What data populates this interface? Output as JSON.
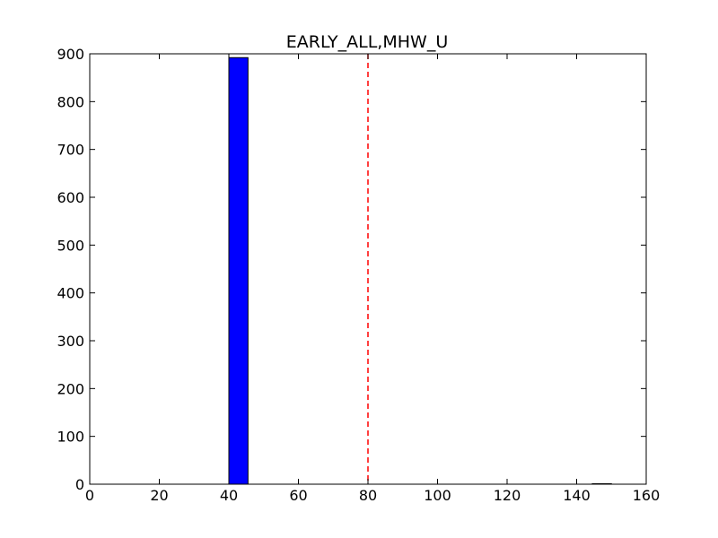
{
  "chart_data": {
    "type": "bar",
    "title": "EARLY_ALL,MHW_U",
    "xlabel": "",
    "ylabel": "",
    "xlim": [
      0,
      160
    ],
    "ylim": [
      0,
      900
    ],
    "xticks": [
      0,
      20,
      40,
      60,
      80,
      100,
      120,
      140,
      160
    ],
    "yticks": [
      0,
      100,
      200,
      300,
      400,
      500,
      600,
      700,
      800,
      900
    ],
    "grid": false,
    "bins": [
      {
        "x0": 40.0,
        "x1": 45.5,
        "count": 892
      },
      {
        "x0": 45.5,
        "x1": 51.0,
        "count": 0
      },
      {
        "x0": 51.0,
        "x1": 56.5,
        "count": 0
      },
      {
        "x0": 56.5,
        "x1": 62.0,
        "count": 0
      },
      {
        "x0": 62.0,
        "x1": 67.5,
        "count": 0
      },
      {
        "x0": 67.5,
        "x1": 73.0,
        "count": 0
      },
      {
        "x0": 73.0,
        "x1": 78.5,
        "count": 0
      },
      {
        "x0": 78.5,
        "x1": 84.0,
        "count": 0
      },
      {
        "x0": 84.0,
        "x1": 89.5,
        "count": 0
      },
      {
        "x0": 89.5,
        "x1": 95.0,
        "count": 0
      },
      {
        "x0": 95.0,
        "x1": 100.5,
        "count": 0
      },
      {
        "x0": 100.5,
        "x1": 106.0,
        "count": 0
      },
      {
        "x0": 106.0,
        "x1": 111.5,
        "count": 0
      },
      {
        "x0": 111.5,
        "x1": 117.0,
        "count": 0
      },
      {
        "x0": 117.0,
        "x1": 122.5,
        "count": 0
      },
      {
        "x0": 122.5,
        "x1": 128.0,
        "count": 0
      },
      {
        "x0": 128.0,
        "x1": 133.5,
        "count": 0
      },
      {
        "x0": 133.5,
        "x1": 139.0,
        "count": 0
      },
      {
        "x0": 139.0,
        "x1": 144.5,
        "count": 0
      },
      {
        "x0": 144.5,
        "x1": 150.0,
        "count": 1
      }
    ],
    "bar_color": "#0000ff",
    "reference_line": {
      "x": 80,
      "color": "#ff0000",
      "style": "dashed"
    }
  }
}
